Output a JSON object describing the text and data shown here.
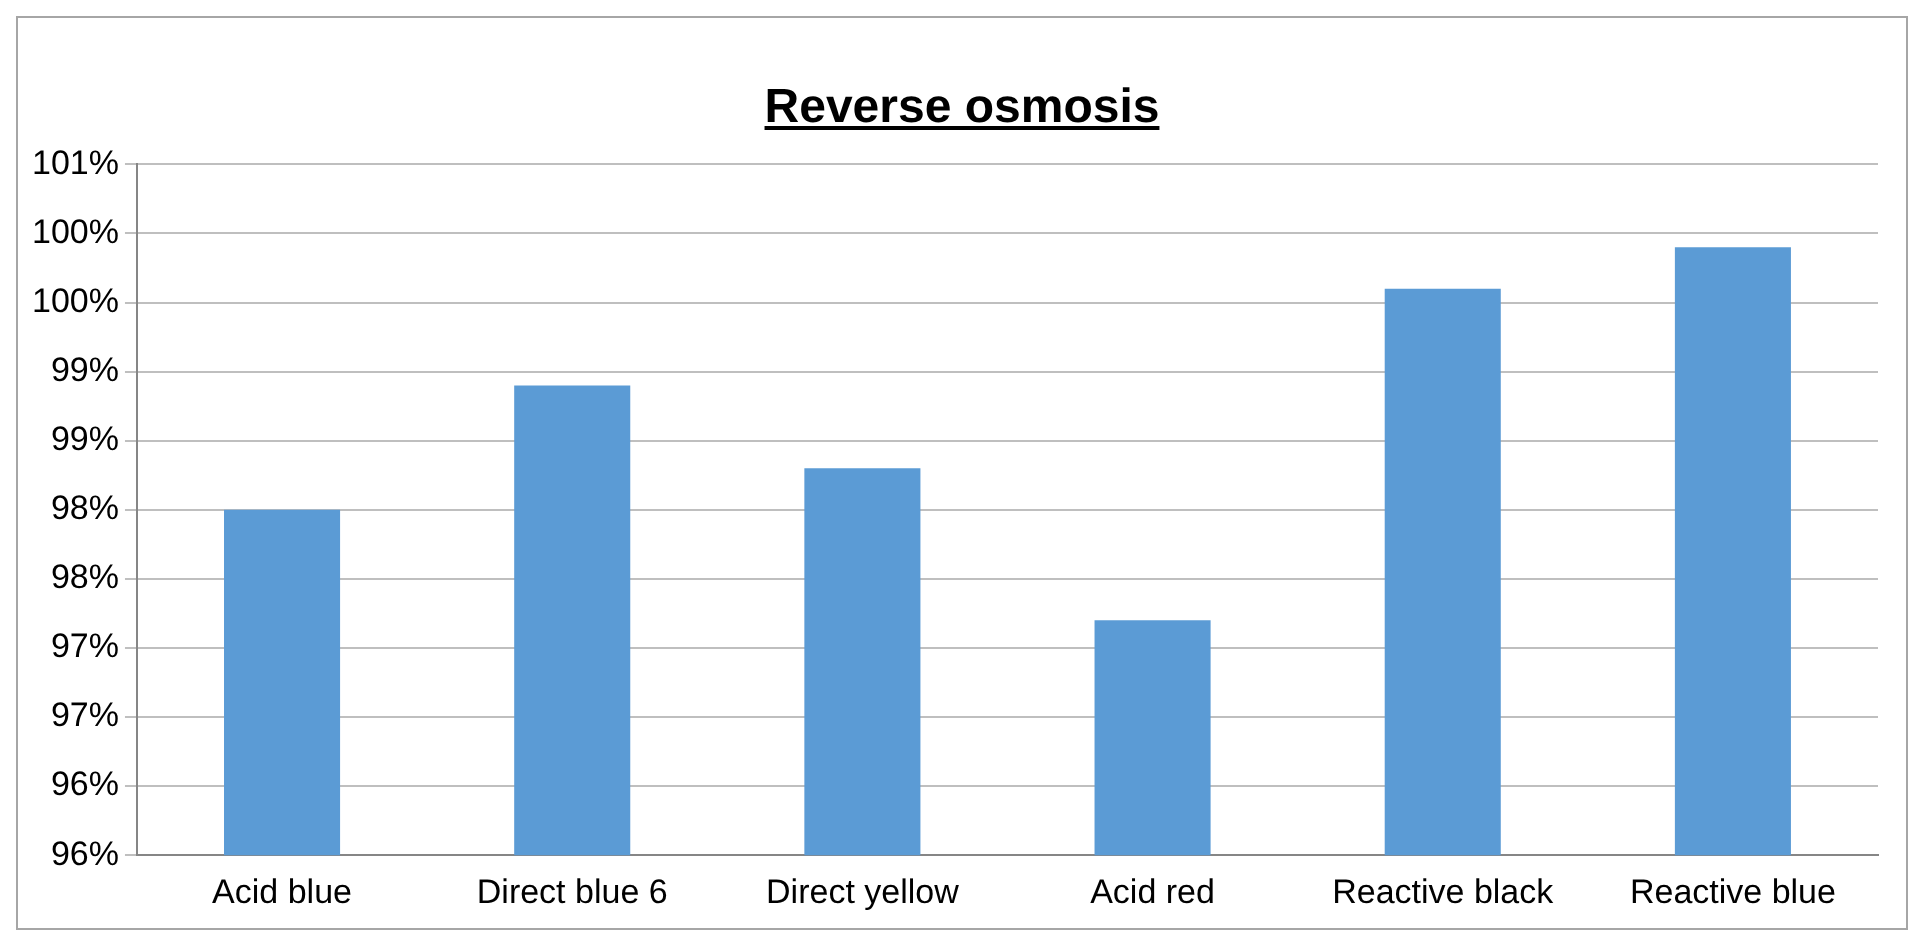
{
  "chart_data": {
    "type": "bar",
    "title": "Reverse osmosis",
    "categories": [
      "Acid blue",
      "Direct blue 6",
      "Direct yellow",
      "Acid red",
      "Reactive black",
      "Reactive blue"
    ],
    "values": [
      98.0,
      98.9,
      98.3,
      97.2,
      99.6,
      99.9
    ],
    "color": "#5b9bd5",
    "ylim": [
      95.5,
      100.5
    ],
    "yticks": [
      {
        "value": 95.5,
        "label": "96%"
      },
      {
        "value": 96,
        "label": "96%"
      },
      {
        "value": 96.5,
        "label": "97%"
      },
      {
        "value": 97,
        "label": "97%"
      },
      {
        "value": 97.5,
        "label": "98%"
      },
      {
        "value": 98,
        "label": "98%"
      },
      {
        "value": 98.5,
        "label": "99%"
      },
      {
        "value": 99,
        "label": "99%"
      },
      {
        "value": 99.5,
        "label": "100%"
      },
      {
        "value": 100,
        "label": "100%"
      },
      {
        "value": 100.5,
        "label": "101%"
      }
    ],
    "grid": "y",
    "legend": false
  }
}
